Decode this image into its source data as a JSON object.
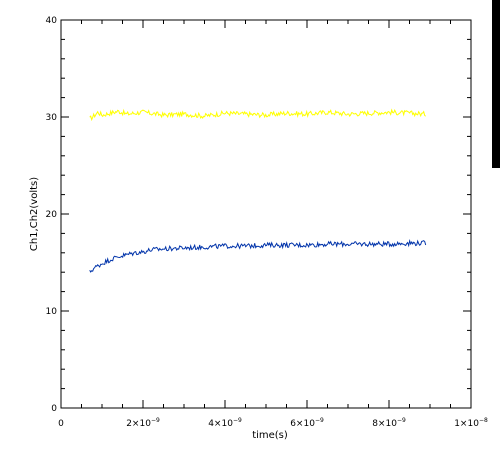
{
  "chart_data": {
    "type": "line",
    "title": "",
    "xlabel": "time(s)",
    "ylabel": "Ch1,Ch2(volts)",
    "xlim": [
      0,
      1e-08
    ],
    "ylim": [
      0,
      40
    ],
    "grid": false,
    "x_ticks": [
      {
        "value": 0,
        "label": "0",
        "mantissa": "",
        "exp": ""
      },
      {
        "value": 2e-09,
        "label": "2×10⁻⁹",
        "mantissa": "2×10",
        "exp": "−9"
      },
      {
        "value": 4e-09,
        "label": "4×10⁻⁹",
        "mantissa": "4×10",
        "exp": "−9"
      },
      {
        "value": 6e-09,
        "label": "6×10⁻⁹",
        "mantissa": "6×10",
        "exp": "−9"
      },
      {
        "value": 8e-09,
        "label": "8×10⁻⁹",
        "mantissa": "8×10",
        "exp": "−9"
      },
      {
        "value": 1e-08,
        "label": "1×10⁻⁸",
        "mantissa": "1×10",
        "exp": "−8"
      }
    ],
    "y_ticks": [
      {
        "value": 0,
        "label": "0"
      },
      {
        "value": 10,
        "label": "10"
      },
      {
        "value": 20,
        "label": "20"
      },
      {
        "value": 30,
        "label": "30"
      },
      {
        "value": 40,
        "label": "40"
      }
    ],
    "x_minor_step": 5e-10,
    "y_minor_step": 2,
    "series": [
      {
        "name": "Ch1",
        "color": "#ffff00",
        "x": [
          7e-10,
          8e-10,
          9e-10,
          1e-09,
          1.2e-09,
          1.4e-09,
          1.6e-09,
          1.8e-09,
          2e-09,
          2.5e-09,
          3e-09,
          3.5e-09,
          4e-09,
          4.5e-09,
          5e-09,
          5.5e-09,
          6e-09,
          6.5e-09,
          7e-09,
          7.5e-09,
          8e-09,
          8.5e-09,
          8.9e-09
        ],
        "y": [
          29.8,
          30.1,
          30.5,
          30.2,
          30.4,
          30.6,
          30.3,
          30.4,
          30.5,
          30.2,
          30.3,
          30.1,
          30.4,
          30.3,
          30.2,
          30.4,
          30.3,
          30.5,
          30.3,
          30.4,
          30.5,
          30.4,
          30.3
        ]
      },
      {
        "name": "Ch2",
        "color": "#0033aa",
        "x": [
          7e-10,
          8e-10,
          1e-09,
          1.2e-09,
          1.4e-09,
          1.6e-09,
          1.8e-09,
          2e-09,
          2.2e-09,
          2.5e-09,
          3e-09,
          3.5e-09,
          4e-09,
          4.5e-09,
          5e-09,
          5.5e-09,
          6e-09,
          6.5e-09,
          7e-09,
          7.5e-09,
          8e-09,
          8.5e-09,
          8.9e-09
        ],
        "y": [
          14.0,
          14.4,
          14.9,
          15.3,
          15.6,
          15.8,
          16.0,
          16.1,
          16.3,
          16.4,
          16.5,
          16.6,
          16.7,
          16.7,
          16.8,
          16.8,
          16.8,
          16.9,
          16.9,
          16.9,
          16.9,
          17.0,
          17.0
        ]
      }
    ]
  }
}
